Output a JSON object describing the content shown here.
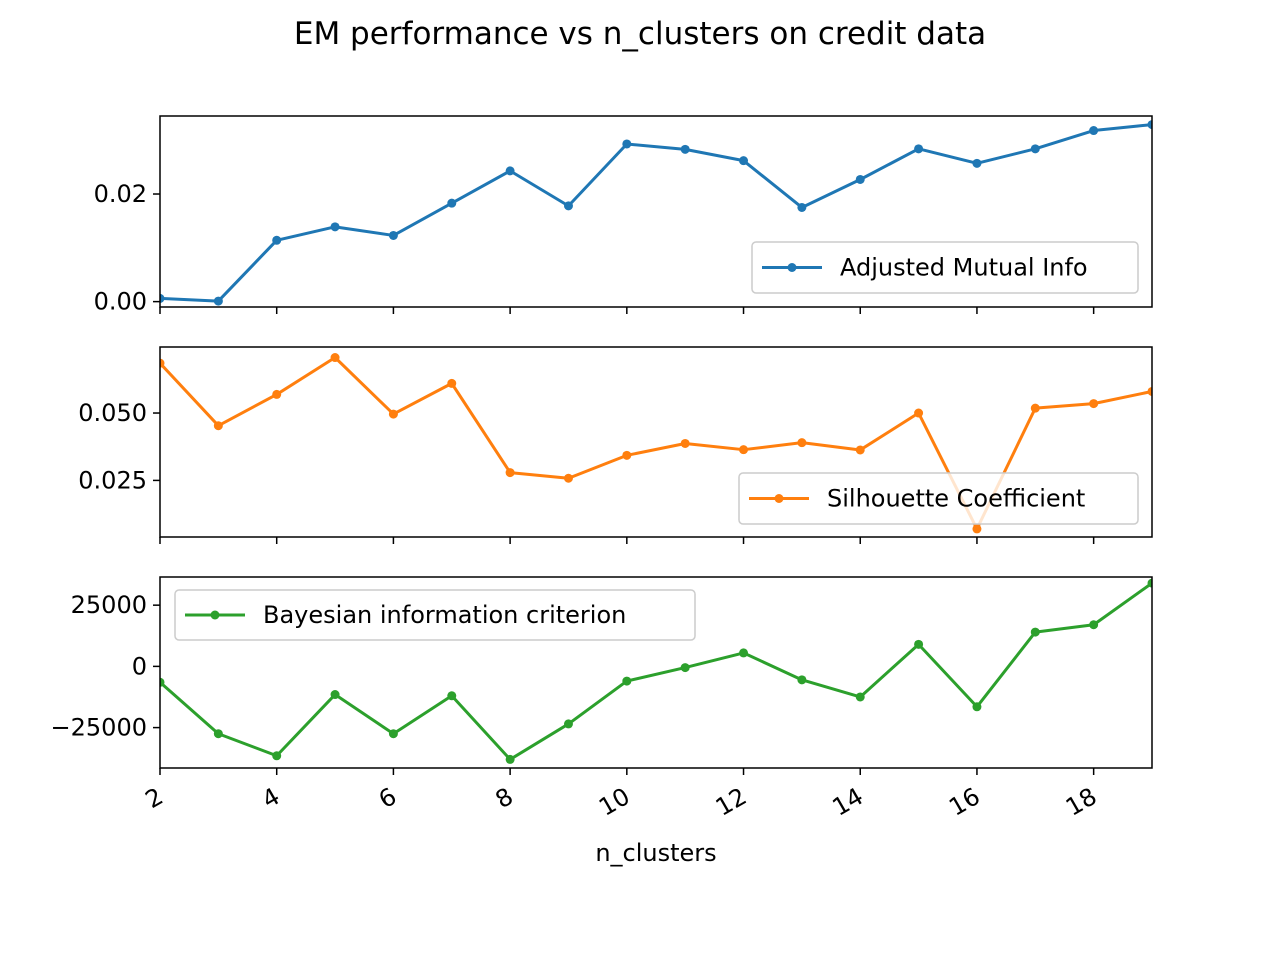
{
  "chart_data": {
    "type": "line",
    "title": "EM performance vs n_clusters on credit data",
    "xlabel": "n_clusters",
    "x": [
      2,
      3,
      4,
      5,
      6,
      7,
      8,
      9,
      10,
      11,
      12,
      13,
      14,
      15,
      16,
      17,
      18,
      19
    ],
    "xlim": [
      2,
      19
    ],
    "xticks": [
      "2",
      "4",
      "6",
      "8",
      "10",
      "12",
      "14",
      "16",
      "18"
    ],
    "grid": false,
    "subplots": [
      {
        "legend_placement": "lower right",
        "ylim": [
          -0.001,
          0.0345
        ],
        "yticks": [
          0.0,
          0.02
        ],
        "ytick_labels": [
          "0.00",
          "0.02"
        ],
        "series": [
          {
            "name": "Adjusted Mutual Info",
            "color": "#1f77b4",
            "values": [
              0.0006,
              0.0001,
              0.0114,
              0.0139,
              0.0123,
              0.0183,
              0.0243,
              0.0178,
              0.0293,
              0.0283,
              0.0262,
              0.0175,
              0.0227,
              0.0284,
              0.0257,
              0.0284,
              0.0318,
              0.0329
            ]
          }
        ]
      },
      {
        "legend_placement": "lower right",
        "ylim": [
          0.004,
          0.0745
        ],
        "yticks": [
          0.025,
          0.05
        ],
        "ytick_labels": [
          "0.025",
          "0.050"
        ],
        "series": [
          {
            "name": "Silhouette Coefficient",
            "color": "#ff7f0e",
            "values": [
              0.0685,
              0.0453,
              0.0569,
              0.0706,
              0.0496,
              0.061,
              0.0279,
              0.0258,
              0.0343,
              0.0387,
              0.0364,
              0.039,
              0.0363,
              0.05,
              0.007,
              0.0518,
              0.0535,
              0.058
            ]
          }
        ]
      },
      {
        "legend_placement": "upper left",
        "ylim": [
          -41500,
          36500
        ],
        "yticks": [
          -25000,
          0,
          25000
        ],
        "ytick_labels": [
          "−25000",
          "0",
          "25000"
        ],
        "series": [
          {
            "name": "Bayesian information criterion",
            "color": "#2ca02c",
            "values": [
              -6500,
              -27500,
              -36500,
              -11500,
              -27500,
              -12000,
              -38000,
              -23500,
              -6000,
              -500,
              5500,
              -5500,
              -12500,
              9000,
              -16500,
              14000,
              17000,
              34000
            ]
          }
        ]
      }
    ]
  }
}
